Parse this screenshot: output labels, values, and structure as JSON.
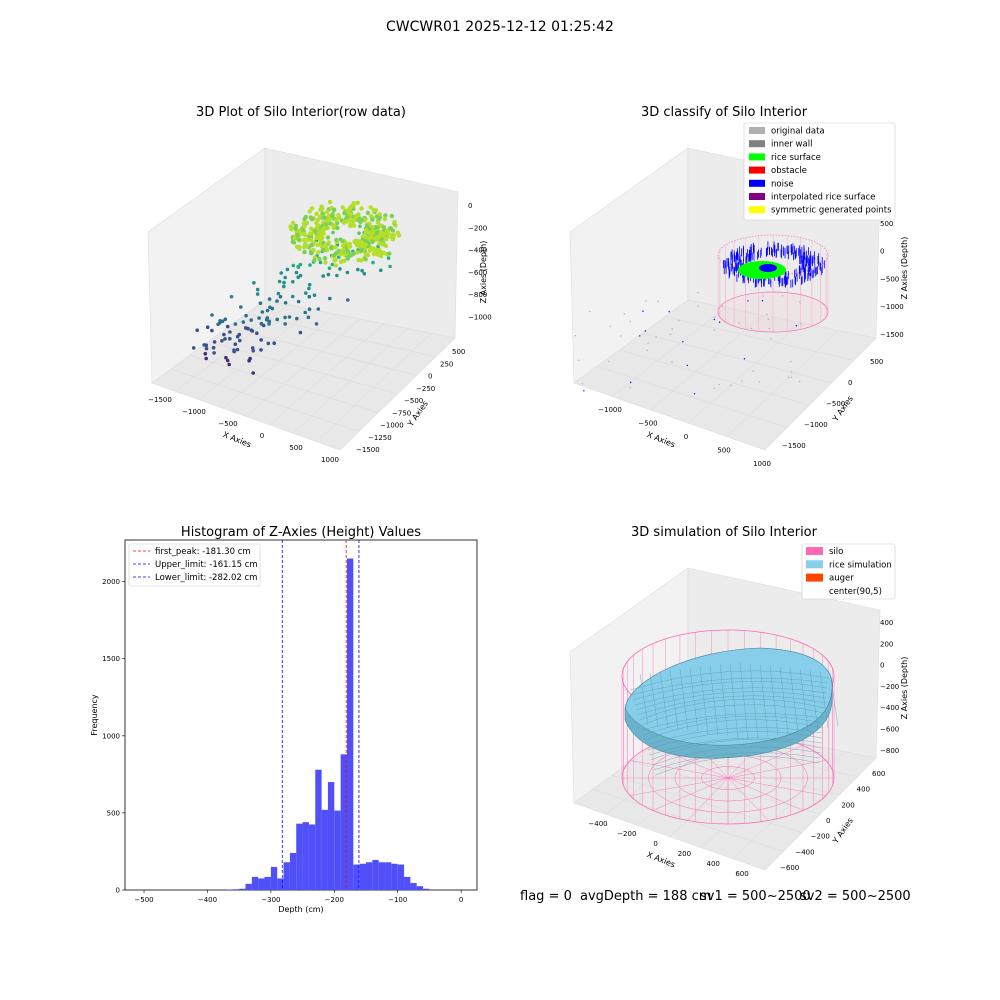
{
  "figure": {
    "suptitle": "CWCWR01 2025-12-12 01:25:42",
    "status_line": {
      "flag": "flag = 0",
      "avg_depth": "avgDepth = 188 cm",
      "sv1": "sv1 = 500~2500",
      "sv2": "sv2 = 500~2500"
    }
  },
  "colors": {
    "histogram_bar": "#5050fb",
    "first_peak_line": "#ff0000",
    "limit_lines": "#0000ff",
    "silo_wire": "#ff69b4",
    "rice_simulation": "#87ceeb",
    "auger": "#ff4500",
    "rice_surface": "#00ff00",
    "noise": "#0000ff",
    "interpolated": "#800080",
    "symmetric": "#ffff00",
    "original": "#b0b0b0",
    "inner_wall": "#808080",
    "obstacle": "#ff0000"
  },
  "chart_data": [
    {
      "type": "scatter",
      "title": "3D Plot of Silo Interior(row data)",
      "xlabel": "X Axies",
      "ylabel": "Y Axies",
      "zlabel": "Z Axies (Depth)",
      "x_ticks": [
        "−1500",
        "−1000",
        "−500",
        "0",
        "500",
        "1000"
      ],
      "y_ticks": [
        "500",
        "250",
        "0",
        "−250",
        "−500",
        "−750",
        "−1000",
        "−1250",
        "−1500"
      ],
      "z_ticks": [
        "0",
        "−200",
        "−400",
        "−600",
        "−800",
        "−1000"
      ],
      "xlim": [
        -1500,
        1000
      ],
      "ylim": [
        -1500,
        500
      ],
      "zlim": [
        -1050,
        0
      ]
    },
    {
      "type": "scatter",
      "title": "3D classify of Silo Interior",
      "xlabel": "X Axies",
      "ylabel": "Y Axies",
      "zlabel": "Z Axies (Depth)",
      "x_ticks": [
        "−1000",
        "−500",
        "0",
        "500",
        "1000"
      ],
      "y_ticks": [
        "500",
        "0",
        "−500",
        "−1000",
        "−1500"
      ],
      "z_ticks": [
        "500",
        "0",
        "−500",
        "−1000",
        "−1500"
      ],
      "legend": [
        {
          "label": "original data",
          "color": "#b0b0b0"
        },
        {
          "label": "inner wall",
          "color": "#808080"
        },
        {
          "label": "rice surface",
          "color": "#00ff00"
        },
        {
          "label": "obstacle",
          "color": "#ff0000"
        },
        {
          "label": "noise",
          "color": "#0000ff"
        },
        {
          "label": "interpolated rice surface",
          "color": "#800080"
        },
        {
          "label": "symmetric generated points",
          "color": "#ffff00"
        }
      ],
      "legend_position": "top-right"
    },
    {
      "type": "bar",
      "title": "Histogram of Z-Axies (Height) Values",
      "xlabel": "Depth (cm)",
      "ylabel": "Frequency",
      "xlim": [
        -530,
        25
      ],
      "ylim": [
        0,
        2270
      ],
      "x_ticks": [
        -500,
        -400,
        -300,
        -200,
        -100,
        0
      ],
      "y_ticks": [
        0,
        500,
        1000,
        1500,
        2000
      ],
      "bin_width": 10,
      "bins": [
        [
          -370,
          3
        ],
        [
          -360,
          5
        ],
        [
          -350,
          8
        ],
        [
          -340,
          40
        ],
        [
          -330,
          85
        ],
        [
          -320,
          75
        ],
        [
          -310,
          85
        ],
        [
          -300,
          150
        ],
        [
          -290,
          75
        ],
        [
          -280,
          180
        ],
        [
          -270,
          240
        ],
        [
          -260,
          430
        ],
        [
          -250,
          440
        ],
        [
          -240,
          425
        ],
        [
          -230,
          780
        ],
        [
          -220,
          520
        ],
        [
          -210,
          700
        ],
        [
          -200,
          515
        ],
        [
          -190,
          880
        ],
        [
          -180,
          2150
        ],
        [
          -170,
          165
        ],
        [
          -160,
          170
        ],
        [
          -150,
          180
        ],
        [
          -140,
          195
        ],
        [
          -130,
          180
        ],
        [
          -120,
          180
        ],
        [
          -110,
          170
        ],
        [
          -100,
          165
        ],
        [
          -90,
          85
        ],
        [
          -80,
          45
        ],
        [
          -70,
          25
        ],
        [
          -60,
          8
        ]
      ],
      "vlines": [
        {
          "label": "first_peak: -181.30 cm",
          "x": -181.3,
          "color": "#ff0000"
        },
        {
          "label": "Upper_limit: -161.15 cm",
          "x": -161.15,
          "color": "#0000ff"
        },
        {
          "label": "Lower_limit: -282.02 cm",
          "x": -282.02,
          "color": "#0000ff"
        }
      ],
      "legend_position": "top-left"
    },
    {
      "type": "area",
      "title": "3D simulation of Silo Interior",
      "xlabel": "X Axies",
      "ylabel": "Y Axies",
      "zlabel": "Z Axies (Depth)",
      "x_ticks": [
        "−400",
        "−200",
        "0",
        "200",
        "400",
        "600"
      ],
      "y_ticks": [
        "600",
        "400",
        "200",
        "0",
        "−200",
        "−400",
        "−600"
      ],
      "z_ticks": [
        "400",
        "200",
        "0",
        "−200",
        "−400",
        "−600",
        "−800"
      ],
      "legend": [
        {
          "label": "silo",
          "color": "#ff69b4"
        },
        {
          "label": "rice simulation",
          "color": "#87ceeb"
        },
        {
          "label": "auger",
          "color": "#ff4500"
        },
        {
          "label": "center(90,5)",
          "color": ""
        }
      ],
      "legend_position": "top-right"
    }
  ]
}
